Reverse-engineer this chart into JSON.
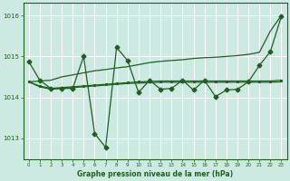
{
  "title": "Graphe pression niveau de la mer (hPa)",
  "bg_color": "#cce9e2",
  "grid_color": "#ffffff",
  "line_color": "#1f5f1f",
  "xlim": [
    -0.5,
    23.5
  ],
  "ylim": [
    1012.5,
    1016.3
  ],
  "yticks": [
    1013,
    1014,
    1015,
    1016
  ],
  "xtick_labels": [
    "0",
    "1",
    "2",
    "3",
    "4",
    "5",
    "6",
    "7",
    "8",
    "9",
    "10",
    "11",
    "12",
    "13",
    "14",
    "15",
    "16",
    "17",
    "18",
    "19",
    "20",
    "21",
    "22",
    "23"
  ],
  "series_volatile": [
    1014.88,
    1014.42,
    1014.22,
    1014.22,
    1014.22,
    1015.0,
    1013.12,
    1012.78,
    1015.22,
    1014.9,
    1014.12,
    1014.42,
    1014.2,
    1014.22,
    1014.42,
    1014.18,
    1014.42,
    1014.02,
    1014.18,
    1014.2,
    1014.38,
    1014.78,
    1015.12,
    1015.98
  ],
  "series_rising": [
    1014.38,
    1014.4,
    1014.42,
    1014.5,
    1014.55,
    1014.6,
    1014.65,
    1014.68,
    1014.72,
    1014.75,
    1014.8,
    1014.85,
    1014.88,
    1014.9,
    1014.92,
    1014.95,
    1014.97,
    1014.98,
    1015.0,
    1015.02,
    1015.05,
    1015.1,
    1015.62,
    1016.0
  ],
  "series_flat1": [
    1014.38,
    1014.28,
    1014.22,
    1014.24,
    1014.26,
    1014.28,
    1014.3,
    1014.32,
    1014.34,
    1014.36,
    1014.38,
    1014.39,
    1014.4,
    1014.4,
    1014.4,
    1014.4,
    1014.4,
    1014.4,
    1014.4,
    1014.4,
    1014.4,
    1014.4,
    1014.4,
    1014.42
  ],
  "series_flat2": [
    1014.38,
    1014.26,
    1014.2,
    1014.22,
    1014.24,
    1014.26,
    1014.28,
    1014.3,
    1014.32,
    1014.34,
    1014.35,
    1014.36,
    1014.37,
    1014.37,
    1014.37,
    1014.37,
    1014.37,
    1014.37,
    1014.37,
    1014.37,
    1014.37,
    1014.37,
    1014.37,
    1014.38
  ]
}
